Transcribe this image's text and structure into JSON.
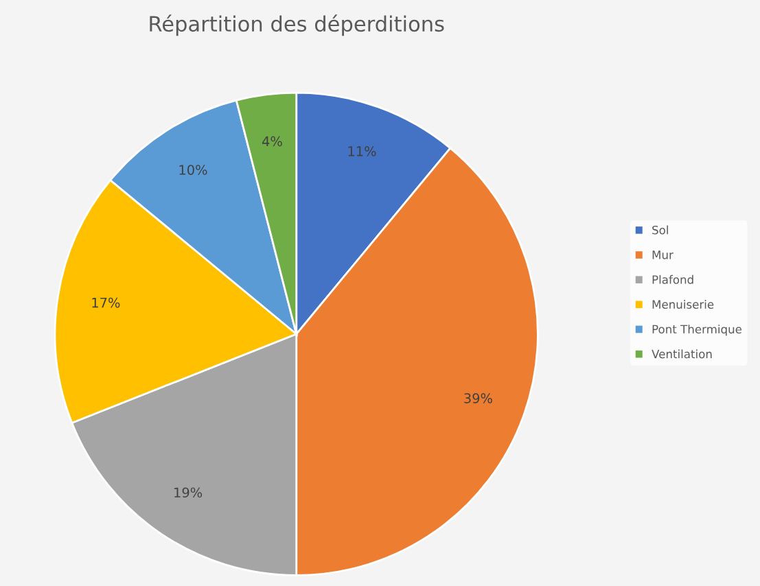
{
  "chart_data": {
    "type": "pie",
    "title": "Répartition des déperditions",
    "categories": [
      "Sol",
      "Mur",
      "Plafond",
      "Menuiserie",
      "Pont Thermique",
      "Ventilation"
    ],
    "values": [
      11,
      39,
      19,
      17,
      10,
      4
    ],
    "value_labels": [
      "11%",
      "39%",
      "19%",
      "17%",
      "10%",
      "4%"
    ],
    "colors": [
      "#4472c4",
      "#ed7d31",
      "#a5a5a5",
      "#ffc000",
      "#5b9bd5",
      "#70ad47"
    ],
    "legend": "right"
  }
}
